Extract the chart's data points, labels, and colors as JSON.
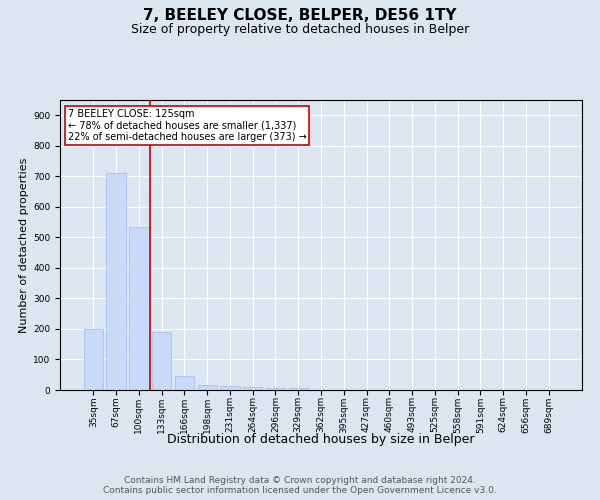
{
  "title1": "7, BEELEY CLOSE, BELPER, DE56 1TY",
  "title2": "Size of property relative to detached houses in Belper",
  "xlabel": "Distribution of detached houses by size in Belper",
  "ylabel": "Number of detached properties",
  "categories": [
    "35sqm",
    "67sqm",
    "100sqm",
    "133sqm",
    "166sqm",
    "198sqm",
    "231sqm",
    "264sqm",
    "296sqm",
    "329sqm",
    "362sqm",
    "395sqm",
    "427sqm",
    "460sqm",
    "493sqm",
    "525sqm",
    "558sqm",
    "591sqm",
    "624sqm",
    "656sqm",
    "689sqm"
  ],
  "values": [
    200,
    710,
    535,
    190,
    45,
    18,
    12,
    10,
    5,
    8,
    0,
    0,
    0,
    0,
    0,
    0,
    0,
    0,
    0,
    0,
    0
  ],
  "bar_color": "#c9daf8",
  "bar_edge_color": "#a4c2f4",
  "vline_index": 2.5,
  "vline_color": "#cc0000",
  "annotation_line1": "7 BEELEY CLOSE: 125sqm",
  "annotation_line2": "← 78% of detached houses are smaller (1,337)",
  "annotation_line3": "22% of semi-detached houses are larger (373) →",
  "annotation_box_color": "#ffffff",
  "annotation_box_edge_color": "#cc0000",
  "ylim": [
    0,
    950
  ],
  "yticks": [
    0,
    100,
    200,
    300,
    400,
    500,
    600,
    700,
    800,
    900
  ],
  "background_color": "#dce6f1",
  "plot_bg_color": "#dce6f1",
  "footer_text": "Contains HM Land Registry data © Crown copyright and database right 2024.\nContains public sector information licensed under the Open Government Licence v3.0.",
  "title1_fontsize": 11,
  "title2_fontsize": 9,
  "xlabel_fontsize": 9,
  "ylabel_fontsize": 8,
  "annotation_fontsize": 7,
  "footer_fontsize": 6.5,
  "tick_fontsize": 6.5
}
